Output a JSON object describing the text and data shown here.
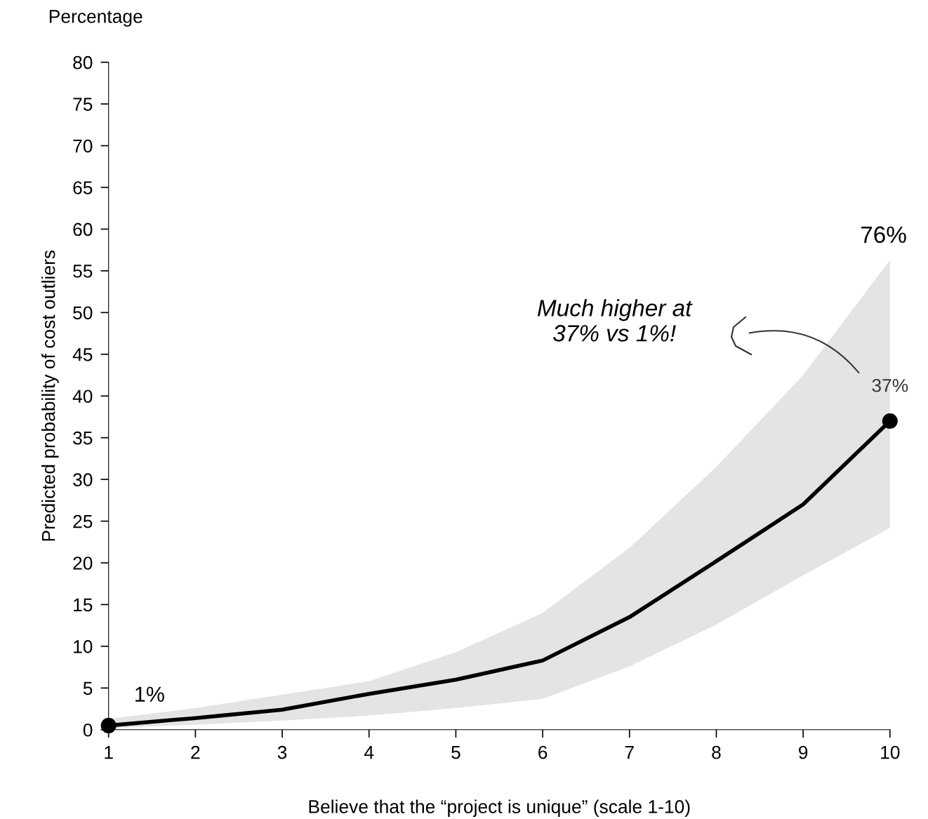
{
  "chart_data": {
    "type": "line",
    "xlabel": "Believe that the “project is unique” (scale 1-10)",
    "ylabel": "Predicted probability of cost outliers",
    "x": [
      1,
      2,
      3,
      4,
      5,
      6,
      7,
      8,
      9,
      10
    ],
    "series": [
      {
        "type": "scatter",
        "color": "#000000",
        "x": [
          1,
          10
        ],
        "values": [
          0.5,
          37.0
        ],
        "marker": "circle"
      },
      {
        "color": "#000000",
        "values": [
          0.5,
          1.4,
          2.4,
          4.3,
          6.0,
          8.3,
          13.5,
          20.2,
          27.0,
          37.0
        ],
        "lower": [
          0.2,
          0.6,
          1.1,
          1.7,
          2.6,
          3.7,
          7.6,
          12.6,
          18.5,
          24.2
        ],
        "upper": [
          1.3,
          2.6,
          4.2,
          5.8,
          9.3,
          14.0,
          21.8,
          31.5,
          42.5,
          56.3
        ]
      }
    ],
    "xlim": [
      1,
      10
    ],
    "xticks": [
      1,
      2,
      3,
      4,
      5,
      6,
      7,
      8,
      9,
      10
    ],
    "ylim": [
      0,
      80
    ],
    "yticks": [
      0,
      5,
      10,
      15,
      20,
      25,
      30,
      35,
      40,
      45,
      50,
      55,
      60,
      65,
      70,
      75,
      80
    ],
    "grid": false,
    "legend": false,
    "annotations": [
      "Percentage",
      "76%",
      "Much higher at\n37% vs 1%!",
      {
        "text": "1%",
        "x": 1,
        "y": 0.5
      },
      {
        "text": "37%",
        "x": 10,
        "y": 37.0
      }
    ]
  }
}
